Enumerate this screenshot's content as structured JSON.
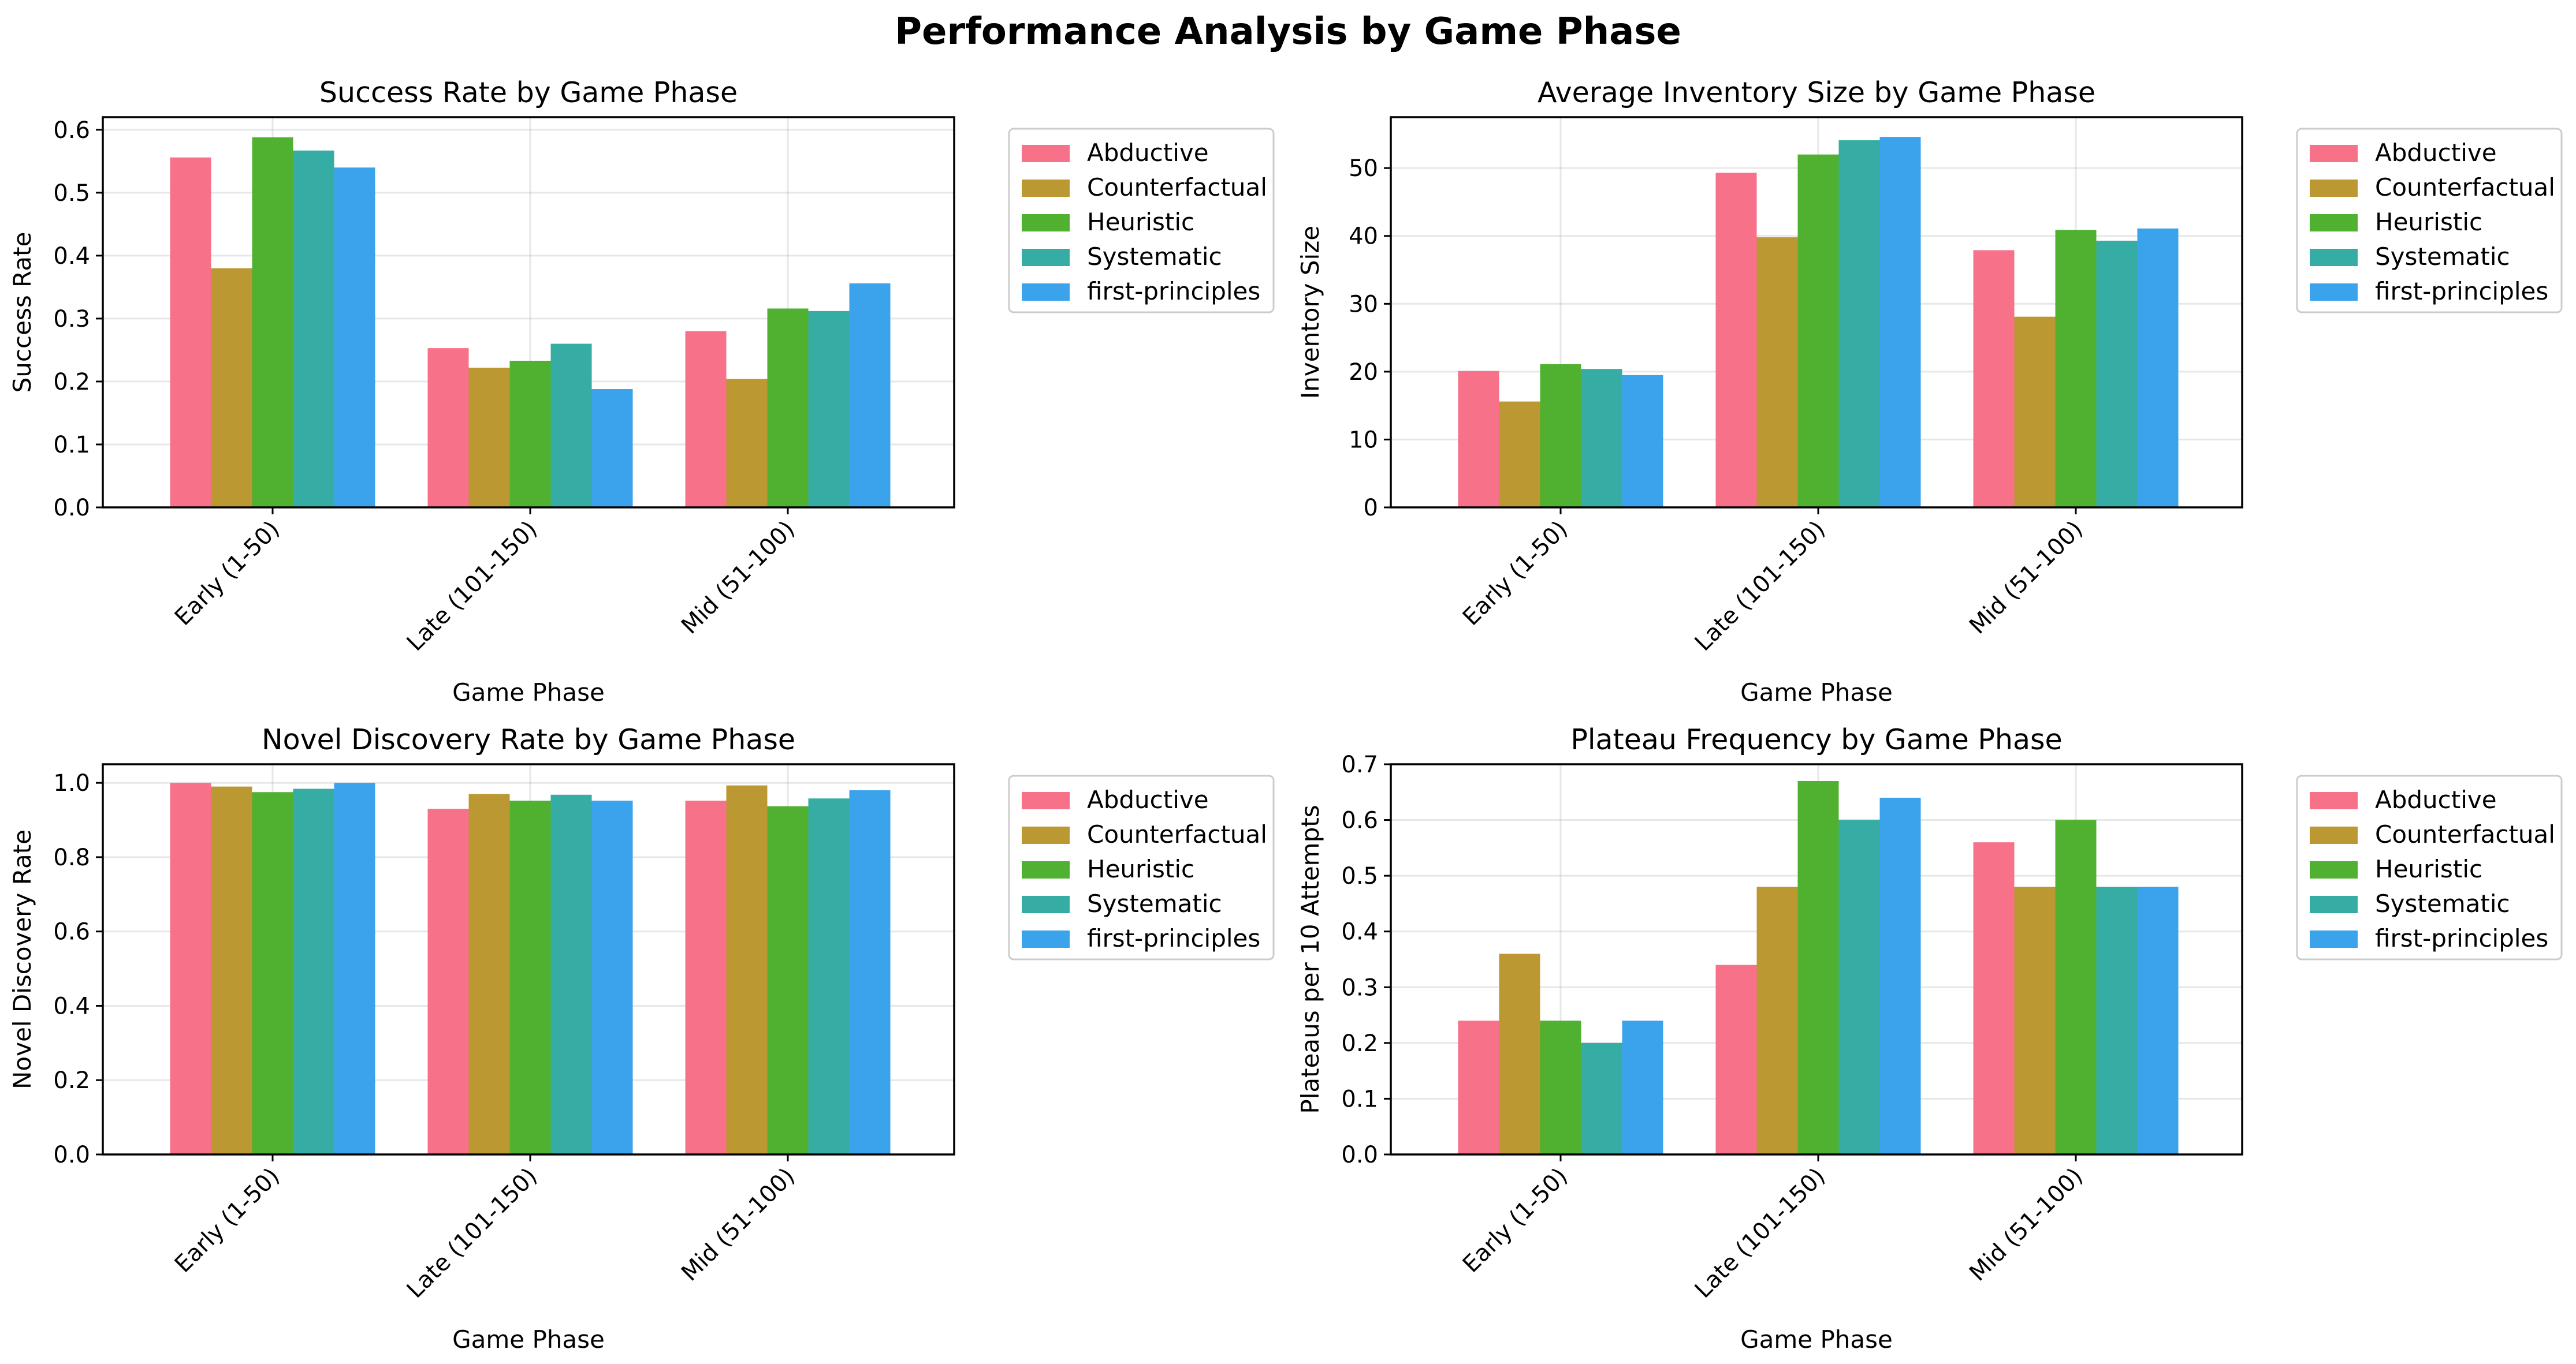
{
  "figure": {
    "title": "Performance Analysis by Game Phase"
  },
  "chart_data": [
    {
      "type": "bar",
      "title": "Success Rate by Game Phase",
      "xlabel": "Game Phase",
      "ylabel": "Success Rate",
      "categories": [
        "Early (1-50)",
        "Late (101-150)",
        "Mid (51-100)"
      ],
      "ylim": [
        0,
        0.62
      ],
      "yticks": [
        0.0,
        0.1,
        0.2,
        0.3,
        0.4,
        0.5,
        0.6
      ],
      "ytick_labels": [
        "0.0",
        "0.1",
        "0.2",
        "0.3",
        "0.4",
        "0.5",
        "0.6"
      ],
      "grid": true,
      "legend": "outside-right-top",
      "series": [
        {
          "name": "Abductive",
          "color": "#f77189",
          "values": [
            0.556,
            0.253,
            0.28
          ]
        },
        {
          "name": "Counterfactual",
          "color": "#bb9832",
          "values": [
            0.38,
            0.222,
            0.204
          ]
        },
        {
          "name": "Heuristic",
          "color": "#50b131",
          "values": [
            0.588,
            0.233,
            0.316
          ]
        },
        {
          "name": "Systematic",
          "color": "#36ada4",
          "values": [
            0.567,
            0.26,
            0.312
          ]
        },
        {
          "name": "first-principles",
          "color": "#3ba3ec",
          "values": [
            0.54,
            0.188,
            0.356
          ]
        }
      ]
    },
    {
      "type": "bar",
      "title": "Average Inventory Size by Game Phase",
      "xlabel": "Game Phase",
      "ylabel": "Inventory Size",
      "categories": [
        "Early (1-50)",
        "Late (101-150)",
        "Mid (51-100)"
      ],
      "ylim": [
        0,
        57.5
      ],
      "yticks": [
        0,
        10,
        20,
        30,
        40,
        50
      ],
      "ytick_labels": [
        "0",
        "10",
        "20",
        "30",
        "40",
        "50"
      ],
      "grid": true,
      "legend": "outside-right-top",
      "series": [
        {
          "name": "Abductive",
          "color": "#f77189",
          "values": [
            20.1,
            49.3,
            37.9
          ]
        },
        {
          "name": "Counterfactual",
          "color": "#bb9832",
          "values": [
            15.6,
            39.8,
            28.1
          ]
        },
        {
          "name": "Heuristic",
          "color": "#50b131",
          "values": [
            21.1,
            52.0,
            40.9
          ]
        },
        {
          "name": "Systematic",
          "color": "#36ada4",
          "values": [
            20.4,
            54.1,
            39.3
          ]
        },
        {
          "name": "first-principles",
          "color": "#3ba3ec",
          "values": [
            19.5,
            54.6,
            41.1
          ]
        }
      ]
    },
    {
      "type": "bar",
      "title": "Novel Discovery Rate by Game Phase",
      "xlabel": "Game Phase",
      "ylabel": "Novel Discovery Rate",
      "categories": [
        "Early (1-50)",
        "Late (101-150)",
        "Mid (51-100)"
      ],
      "ylim": [
        0,
        1.05
      ],
      "yticks": [
        0.0,
        0.2,
        0.4,
        0.6,
        0.8,
        1.0
      ],
      "ytick_labels": [
        "0.0",
        "0.2",
        "0.4",
        "0.6",
        "0.8",
        "1.0"
      ],
      "grid": true,
      "legend": "outside-right-top",
      "series": [
        {
          "name": "Abductive",
          "color": "#f77189",
          "values": [
            1.0,
            0.93,
            0.952
          ]
        },
        {
          "name": "Counterfactual",
          "color": "#bb9832",
          "values": [
            0.99,
            0.97,
            0.993
          ]
        },
        {
          "name": "Heuristic",
          "color": "#50b131",
          "values": [
            0.975,
            0.952,
            0.937
          ]
        },
        {
          "name": "Systematic",
          "color": "#36ada4",
          "values": [
            0.984,
            0.968,
            0.958
          ]
        },
        {
          "name": "first-principles",
          "color": "#3ba3ec",
          "values": [
            1.0,
            0.952,
            0.98
          ]
        }
      ]
    },
    {
      "type": "bar",
      "title": "Plateau Frequency by Game Phase",
      "xlabel": "Game Phase",
      "ylabel": "Plateaus per 10 Attempts",
      "categories": [
        "Early (1-50)",
        "Late (101-150)",
        "Mid (51-100)"
      ],
      "ylim": [
        0,
        0.7
      ],
      "yticks": [
        0.0,
        0.1,
        0.2,
        0.3,
        0.4,
        0.5,
        0.6,
        0.7
      ],
      "ytick_labels": [
        "0.0",
        "0.1",
        "0.2",
        "0.3",
        "0.4",
        "0.5",
        "0.6",
        "0.7"
      ],
      "grid": true,
      "legend": "outside-right-top",
      "series": [
        {
          "name": "Abductive",
          "color": "#f77189",
          "values": [
            0.24,
            0.34,
            0.56
          ]
        },
        {
          "name": "Counterfactual",
          "color": "#bb9832",
          "values": [
            0.36,
            0.48,
            0.48
          ]
        },
        {
          "name": "Heuristic",
          "color": "#50b131",
          "values": [
            0.24,
            0.67,
            0.6
          ]
        },
        {
          "name": "Systematic",
          "color": "#36ada4",
          "values": [
            0.2,
            0.6,
            0.48
          ]
        },
        {
          "name": "first-principles",
          "color": "#3ba3ec",
          "values": [
            0.24,
            0.64,
            0.48
          ]
        }
      ]
    }
  ]
}
